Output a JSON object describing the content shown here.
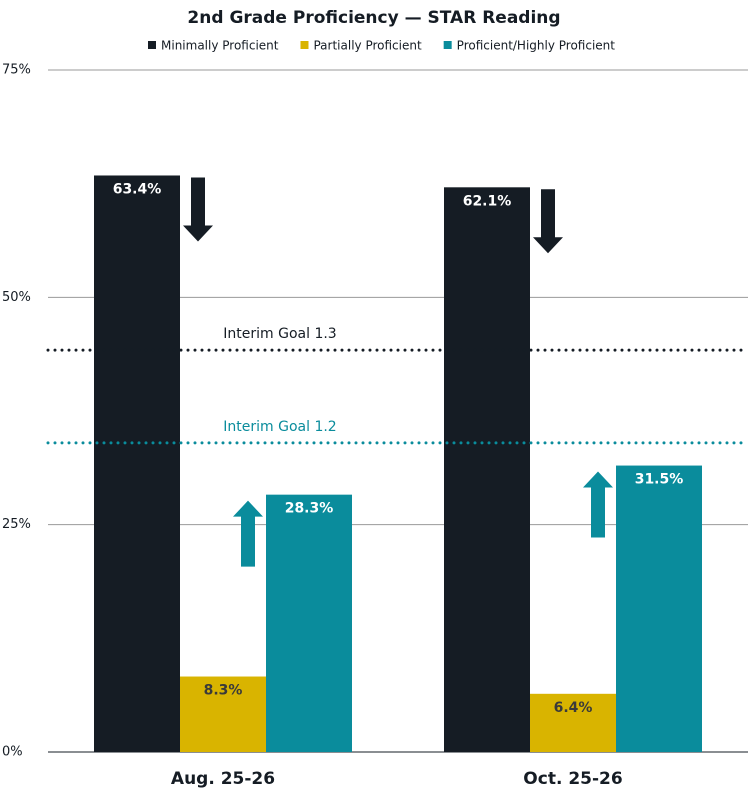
{
  "chart_data": {
    "type": "bar",
    "title": "2nd Grade Proficiency — STAR Reading",
    "categories": [
      "Aug. 25-26",
      "Oct. 25-26"
    ],
    "series": [
      {
        "name": "Minimally Proficient",
        "color": "#151c24",
        "values": [
          63.4,
          62.1
        ],
        "value_labels": [
          "63.4%",
          "62.1%"
        ]
      },
      {
        "name": "Partially Proficient",
        "color": "#d9b400",
        "values": [
          8.3,
          6.4
        ],
        "value_labels": [
          "8.3%",
          "6.4%"
        ]
      },
      {
        "name": "Proficient/Highly Proficient",
        "color": "#0a8c9c",
        "values": [
          28.3,
          31.5
        ],
        "value_labels": [
          "28.3%",
          "31.5%"
        ]
      }
    ],
    "reference_lines": [
      {
        "label": "Interim Goal 1.3",
        "value": 44.2,
        "color": "#151c24"
      },
      {
        "label": "Interim Goal 1.2",
        "value": 34.0,
        "color": "#0a8c9c"
      }
    ],
    "ylim": [
      0,
      75
    ],
    "yticks": [
      {
        "value": 0,
        "label": "0%"
      },
      {
        "value": 25,
        "label": "25%"
      },
      {
        "value": 50,
        "label": "50%"
      },
      {
        "value": 75,
        "label": "75%"
      }
    ],
    "grid": true,
    "legend": "top"
  }
}
